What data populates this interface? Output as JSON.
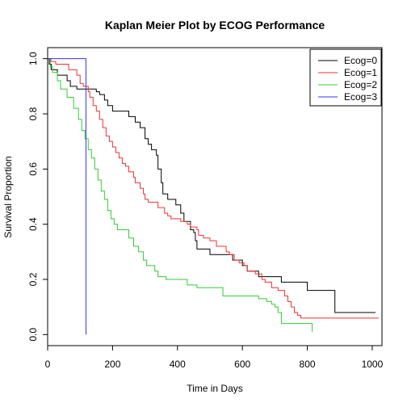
{
  "chart_data": {
    "type": "line",
    "title": "Kaplan Meier Plot by ECOG Performance",
    "xlabel": "Time in Days",
    "ylabel": "Survival Proportion",
    "xlim": [
      0,
      1030
    ],
    "ylim": [
      -0.04,
      1.04
    ],
    "xticks": [
      0,
      200,
      400,
      600,
      800,
      1000
    ],
    "yticks": [
      0.0,
      0.2,
      0.4,
      0.6,
      0.8,
      1.0
    ],
    "xtick_labels": [
      "0",
      "200",
      "400",
      "600",
      "800",
      "1000"
    ],
    "ytick_labels": [
      "0.0",
      "0.2",
      "0.4",
      "0.6",
      "0.8",
      "1.0"
    ],
    "grid": false,
    "legend_position": "top-right",
    "series": [
      {
        "name": "Ecog=0",
        "color": "#000000",
        "points": [
          [
            0,
            1.0
          ],
          [
            5,
            0.98
          ],
          [
            11,
            0.96
          ],
          [
            30,
            0.94
          ],
          [
            60,
            0.92
          ],
          [
            70,
            0.9
          ],
          [
            90,
            0.89
          ],
          [
            140,
            0.89
          ],
          [
            150,
            0.88
          ],
          [
            160,
            0.87
          ],
          [
            175,
            0.85
          ],
          [
            185,
            0.83
          ],
          [
            200,
            0.81
          ],
          [
            240,
            0.81
          ],
          [
            250,
            0.79
          ],
          [
            270,
            0.77
          ],
          [
            285,
            0.75
          ],
          [
            300,
            0.71
          ],
          [
            310,
            0.69
          ],
          [
            320,
            0.67
          ],
          [
            335,
            0.65
          ],
          [
            340,
            0.6
          ],
          [
            350,
            0.55
          ],
          [
            355,
            0.51
          ],
          [
            370,
            0.49
          ],
          [
            395,
            0.47
          ],
          [
            410,
            0.44
          ],
          [
            420,
            0.41
          ],
          [
            440,
            0.38
          ],
          [
            450,
            0.37
          ],
          [
            455,
            0.34
          ],
          [
            460,
            0.31
          ],
          [
            480,
            0.31
          ],
          [
            500,
            0.29
          ],
          [
            550,
            0.29
          ],
          [
            570,
            0.27
          ],
          [
            580,
            0.27
          ],
          [
            600,
            0.25
          ],
          [
            615,
            0.23
          ],
          [
            640,
            0.23
          ],
          [
            650,
            0.21
          ],
          [
            705,
            0.21
          ],
          [
            720,
            0.19
          ],
          [
            790,
            0.19
          ],
          [
            800,
            0.16
          ],
          [
            880,
            0.16
          ],
          [
            885,
            0.08
          ],
          [
            1010,
            0.08
          ]
        ]
      },
      {
        "name": "Ecog=1",
        "color": "#ee3333",
        "points": [
          [
            0,
            1.0
          ],
          [
            10,
            0.99
          ],
          [
            25,
            0.98
          ],
          [
            60,
            0.98
          ],
          [
            65,
            0.96
          ],
          [
            90,
            0.94
          ],
          [
            100,
            0.91
          ],
          [
            110,
            0.9
          ],
          [
            125,
            0.88
          ],
          [
            130,
            0.86
          ],
          [
            140,
            0.83
          ],
          [
            150,
            0.81
          ],
          [
            160,
            0.78
          ],
          [
            170,
            0.75
          ],
          [
            180,
            0.72
          ],
          [
            190,
            0.7
          ],
          [
            200,
            0.68
          ],
          [
            210,
            0.66
          ],
          [
            220,
            0.64
          ],
          [
            230,
            0.62
          ],
          [
            240,
            0.61
          ],
          [
            250,
            0.59
          ],
          [
            265,
            0.57
          ],
          [
            270,
            0.55
          ],
          [
            285,
            0.53
          ],
          [
            295,
            0.51
          ],
          [
            300,
            0.49
          ],
          [
            310,
            0.48
          ],
          [
            330,
            0.48
          ],
          [
            340,
            0.46
          ],
          [
            360,
            0.44
          ],
          [
            370,
            0.43
          ],
          [
            380,
            0.42
          ],
          [
            400,
            0.42
          ],
          [
            410,
            0.41
          ],
          [
            430,
            0.4
          ],
          [
            440,
            0.39
          ],
          [
            460,
            0.38
          ],
          [
            465,
            0.36
          ],
          [
            480,
            0.35
          ],
          [
            500,
            0.34
          ],
          [
            510,
            0.34
          ],
          [
            520,
            0.32
          ],
          [
            540,
            0.32
          ],
          [
            550,
            0.3
          ],
          [
            560,
            0.29
          ],
          [
            575,
            0.27
          ],
          [
            590,
            0.26
          ],
          [
            605,
            0.25
          ],
          [
            615,
            0.23
          ],
          [
            640,
            0.22
          ],
          [
            660,
            0.2
          ],
          [
            670,
            0.19
          ],
          [
            690,
            0.17
          ],
          [
            700,
            0.17
          ],
          [
            710,
            0.16
          ],
          [
            730,
            0.14
          ],
          [
            740,
            0.12
          ],
          [
            750,
            0.1
          ],
          [
            760,
            0.08
          ],
          [
            770,
            0.07
          ],
          [
            780,
            0.06
          ],
          [
            1020,
            0.06
          ]
        ]
      },
      {
        "name": "Ecog=2",
        "color": "#33cc33",
        "points": [
          [
            0,
            1.0
          ],
          [
            8,
            0.97
          ],
          [
            15,
            0.95
          ],
          [
            30,
            0.92
          ],
          [
            40,
            0.89
          ],
          [
            60,
            0.86
          ],
          [
            80,
            0.82
          ],
          [
            95,
            0.78
          ],
          [
            105,
            0.74
          ],
          [
            115,
            0.71
          ],
          [
            125,
            0.67
          ],
          [
            135,
            0.64
          ],
          [
            145,
            0.6
          ],
          [
            155,
            0.56
          ],
          [
            165,
            0.52
          ],
          [
            175,
            0.49
          ],
          [
            185,
            0.45
          ],
          [
            195,
            0.42
          ],
          [
            205,
            0.4
          ],
          [
            215,
            0.38
          ],
          [
            240,
            0.38
          ],
          [
            250,
            0.35
          ],
          [
            265,
            0.32
          ],
          [
            280,
            0.3
          ],
          [
            295,
            0.27
          ],
          [
            305,
            0.25
          ],
          [
            330,
            0.23
          ],
          [
            340,
            0.21
          ],
          [
            360,
            0.21
          ],
          [
            365,
            0.2
          ],
          [
            420,
            0.2
          ],
          [
            430,
            0.18
          ],
          [
            450,
            0.18
          ],
          [
            460,
            0.17
          ],
          [
            530,
            0.17
          ],
          [
            540,
            0.14
          ],
          [
            620,
            0.14
          ],
          [
            650,
            0.13
          ],
          [
            675,
            0.12
          ],
          [
            690,
            0.11
          ],
          [
            700,
            0.1
          ],
          [
            710,
            0.08
          ],
          [
            720,
            0.04
          ],
          [
            810,
            0.04
          ],
          [
            815,
            0.01
          ]
        ]
      },
      {
        "name": "Ecog=3",
        "color": "#3333ee",
        "points": [
          [
            0,
            1.0
          ],
          [
            118,
            1.0
          ],
          [
            118,
            0.0
          ]
        ]
      }
    ]
  }
}
